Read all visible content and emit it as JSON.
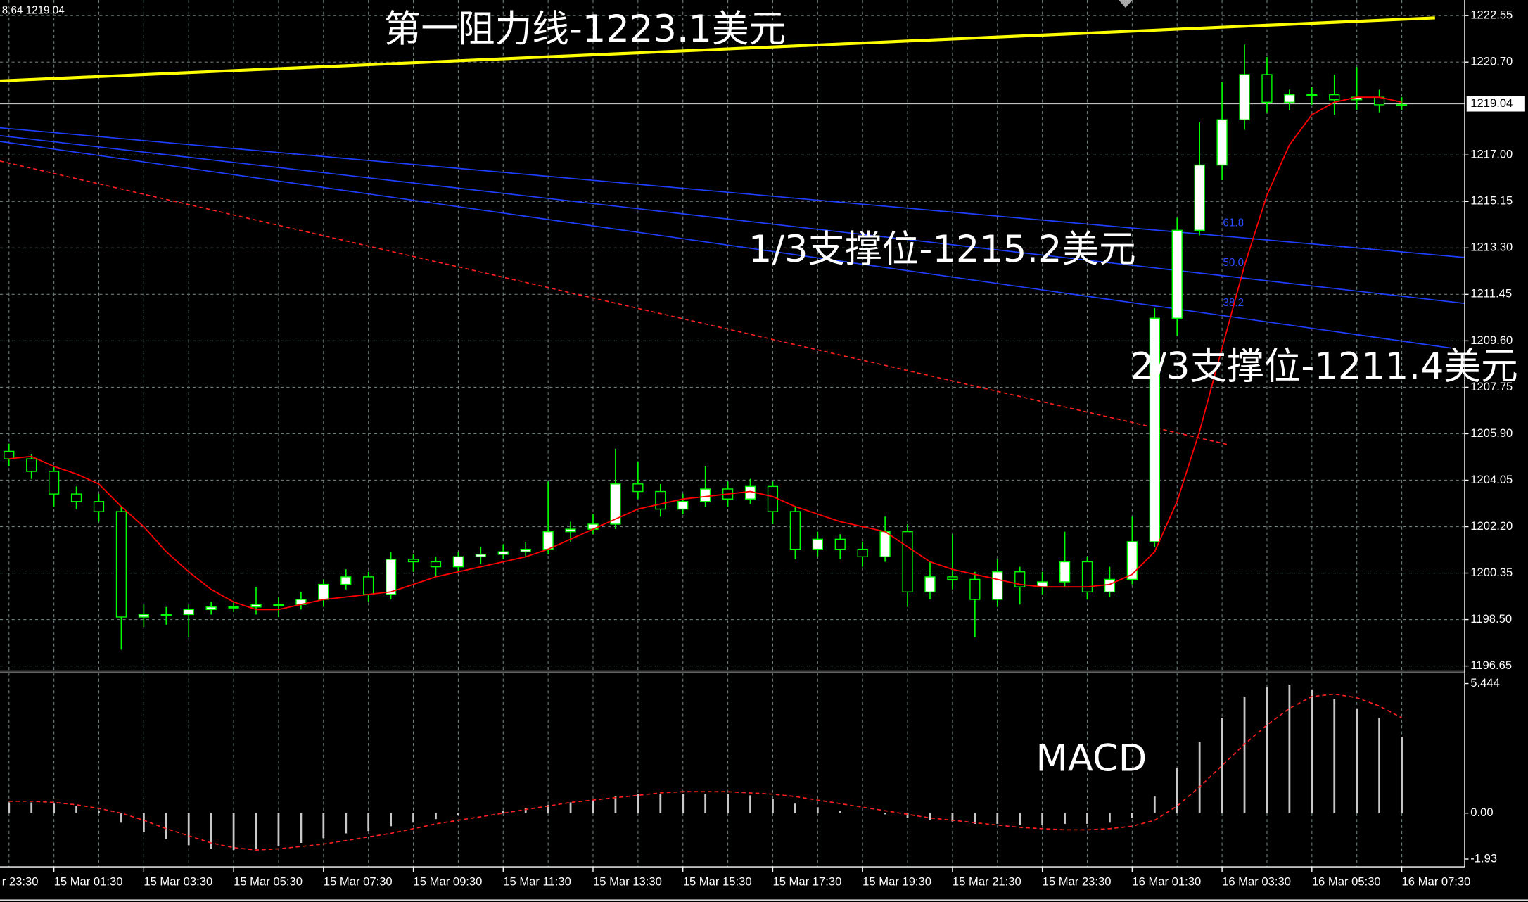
{
  "chart_data": {
    "type": "candlestick",
    "header": "8.64 1219.04",
    "annotations": [
      "第一阻力线-1223.1美元",
      "1/3支撑位-1215.2美元",
      "2/3支撑位-1211.4美元"
    ],
    "fib_levels": [
      "61.8",
      "50.0",
      "38.2"
    ],
    "x": [
      0.5,
      1,
      1.5,
      2,
      2.5,
      3,
      3.5,
      4,
      4.5,
      5,
      5.5,
      6,
      6.5,
      7,
      7.5,
      8,
      8.5,
      9,
      9.5,
      10,
      10.5,
      11,
      11.5,
      12,
      12.5,
      13,
      13.5,
      14,
      14.5,
      15,
      15.5,
      16,
      16.5,
      17,
      17.5,
      18,
      18.5,
      19,
      19.5,
      20,
      20.5,
      21,
      21.5,
      22,
      22.5,
      23,
      23.5,
      24,
      24.5,
      25,
      25.5,
      26,
      26.5,
      27,
      27.5,
      28,
      28.5,
      29,
      29.5,
      30,
      30.5,
      31,
      31.5
    ],
    "candles": [
      [
        1205.2,
        1205.5,
        1204.6,
        1204.9
      ],
      [
        1204.9,
        1205.1,
        1204.1,
        1204.4
      ],
      [
        1204.4,
        1204.6,
        1203.0,
        1203.5
      ],
      [
        1203.5,
        1203.8,
        1202.9,
        1203.2
      ],
      [
        1203.2,
        1203.5,
        1202.4,
        1202.8
      ],
      [
        1202.8,
        1203.0,
        1197.3,
        1198.6
      ],
      [
        1198.6,
        1199.1,
        1198.2,
        1198.7
      ],
      [
        1198.7,
        1199.0,
        1198.3,
        1198.7
      ],
      [
        1198.7,
        1199.1,
        1197.8,
        1198.9
      ],
      [
        1198.9,
        1199.2,
        1198.7,
        1199.0
      ],
      [
        1199.0,
        1199.2,
        1198.8,
        1199.0
      ],
      [
        1199.0,
        1199.8,
        1198.7,
        1199.1
      ],
      [
        1199.1,
        1199.4,
        1198.6,
        1199.1
      ],
      [
        1199.1,
        1199.6,
        1198.9,
        1199.3
      ],
      [
        1199.3,
        1200.1,
        1199.0,
        1199.9
      ],
      [
        1199.9,
        1200.5,
        1199.7,
        1200.2
      ],
      [
        1200.2,
        1200.4,
        1199.2,
        1199.5
      ],
      [
        1199.5,
        1201.2,
        1199.3,
        1200.9
      ],
      [
        1200.9,
        1201.1,
        1200.4,
        1200.8
      ],
      [
        1200.8,
        1201.0,
        1200.2,
        1200.6
      ],
      [
        1200.6,
        1201.2,
        1200.4,
        1201.0
      ],
      [
        1201.0,
        1201.4,
        1200.7,
        1201.1
      ],
      [
        1201.1,
        1201.5,
        1200.9,
        1201.2
      ],
      [
        1201.2,
        1201.6,
        1201.0,
        1201.3
      ],
      [
        1201.3,
        1204.0,
        1201.1,
        1202.0
      ],
      [
        1202.0,
        1202.4,
        1201.6,
        1202.1
      ],
      [
        1202.1,
        1202.7,
        1201.9,
        1202.3
      ],
      [
        1202.3,
        1205.3,
        1202.1,
        1203.9
      ],
      [
        1203.9,
        1204.8,
        1203.3,
        1203.6
      ],
      [
        1203.6,
        1203.9,
        1202.6,
        1202.9
      ],
      [
        1202.9,
        1203.5,
        1202.7,
        1203.2
      ],
      [
        1203.2,
        1204.6,
        1203.0,
        1203.7
      ],
      [
        1203.7,
        1204.0,
        1203.0,
        1203.3
      ],
      [
        1203.3,
        1204.1,
        1203.1,
        1203.8
      ],
      [
        1203.8,
        1204.0,
        1202.3,
        1202.8
      ],
      [
        1202.8,
        1203.0,
        1200.9,
        1201.3
      ],
      [
        1201.3,
        1202.0,
        1201.0,
        1201.7
      ],
      [
        1201.7,
        1201.9,
        1200.9,
        1201.3
      ],
      [
        1201.3,
        1201.6,
        1200.6,
        1201.0
      ],
      [
        1201.0,
        1202.6,
        1200.8,
        1202.0
      ],
      [
        1202.0,
        1202.3,
        1199.0,
        1199.6
      ],
      [
        1199.6,
        1200.8,
        1199.3,
        1200.2
      ],
      [
        1200.2,
        1201.9,
        1199.7,
        1200.1
      ],
      [
        1200.1,
        1200.4,
        1197.8,
        1199.3
      ],
      [
        1199.3,
        1200.9,
        1199.0,
        1200.4
      ],
      [
        1200.4,
        1200.6,
        1199.1,
        1199.8
      ],
      [
        1199.8,
        1200.4,
        1199.5,
        1200.0
      ],
      [
        1200.0,
        1202.0,
        1199.8,
        1200.8
      ],
      [
        1200.8,
        1201.0,
        1199.3,
        1199.6
      ],
      [
        1199.6,
        1200.6,
        1199.4,
        1200.1
      ],
      [
        1200.1,
        1202.6,
        1199.9,
        1201.6
      ],
      [
        1201.6,
        1210.9,
        1201.4,
        1210.5
      ],
      [
        1210.5,
        1214.5,
        1209.8,
        1214.0
      ],
      [
        1214.0,
        1218.3,
        1213.8,
        1216.6
      ],
      [
        1216.6,
        1219.9,
        1216.0,
        1218.4
      ],
      [
        1218.4,
        1221.4,
        1218.0,
        1220.2
      ],
      [
        1220.2,
        1220.9,
        1218.7,
        1219.1
      ],
      [
        1219.1,
        1219.6,
        1218.8,
        1219.4
      ],
      [
        1219.4,
        1219.7,
        1219.0,
        1219.4
      ],
      [
        1219.4,
        1220.2,
        1218.6,
        1219.2
      ],
      [
        1219.2,
        1220.5,
        1218.8,
        1219.3
      ],
      [
        1219.3,
        1219.6,
        1218.7,
        1219.0
      ],
      [
        1219.0,
        1219.3,
        1218.8,
        1219.0
      ]
    ],
    "up_color": "#ffffff",
    "down_color": "#000000",
    "wick_color": "#00ff00",
    "ma": {
      "color": "#ff0000",
      "values": [
        1204.9,
        1205.0,
        1204.6,
        1204.3,
        1203.9,
        1203.0,
        1202.2,
        1201.2,
        1200.4,
        1199.7,
        1199.2,
        1198.9,
        1198.9,
        1199.1,
        1199.3,
        1199.4,
        1199.5,
        1199.6,
        1199.9,
        1200.2,
        1200.4,
        1200.6,
        1200.8,
        1201.0,
        1201.3,
        1201.7,
        1202.1,
        1202.5,
        1202.9,
        1203.1,
        1203.3,
        1203.4,
        1203.5,
        1203.6,
        1203.4,
        1203.0,
        1202.7,
        1202.4,
        1202.2,
        1202.0,
        1201.4,
        1200.8,
        1200.5,
        1200.3,
        1200.1,
        1199.9,
        1199.8,
        1199.8,
        1199.8,
        1199.9,
        1200.3,
        1201.2,
        1203.2,
        1206.0,
        1209.3,
        1212.6,
        1215.4,
        1217.4,
        1218.6,
        1219.1,
        1219.3,
        1219.3,
        1219.1
      ]
    },
    "current_price": 1219.04,
    "lines": [
      {
        "color": "#ffff00",
        "dash": false,
        "x": [
          0.3,
          32.24
        ],
        "y": [
          1219.95,
          1222.46
        ]
      },
      {
        "color": "#1f3fff",
        "dash": false,
        "x": [
          0.3,
          32.9
        ],
        "y": [
          1218.08,
          1212.92
        ]
      },
      {
        "color": "#1f3fff",
        "dash": false,
        "x": [
          0.3,
          32.9
        ],
        "y": [
          1217.77,
          1211.09
        ]
      },
      {
        "color": "#1f3fff",
        "dash": false,
        "x": [
          0.3,
          32.6
        ],
        "y": [
          1217.54,
          1209.31
        ]
      },
      {
        "color": "#ff2020",
        "dash": true,
        "x": [
          0.3,
          27.65
        ],
        "y": [
          1216.76,
          1205.46
        ]
      }
    ],
    "xlim": [
      0.3,
      32.9
    ],
    "xticks": [
      {
        "value": -0.5,
        "label": "r 23:30"
      },
      {
        "value": 1.5,
        "label": "15 Mar 01:30"
      },
      {
        "value": 3.5,
        "label": "15 Mar 03:30"
      },
      {
        "value": 5.5,
        "label": "15 Mar 05:30"
      },
      {
        "value": 7.5,
        "label": "15 Mar 07:30"
      },
      {
        "value": 9.5,
        "label": "15 Mar 09:30"
      },
      {
        "value": 11.5,
        "label": "15 Mar 11:30"
      },
      {
        "value": 13.5,
        "label": "15 Mar 13:30"
      },
      {
        "value": 15.5,
        "label": "15 Mar 15:30"
      },
      {
        "value": 17.5,
        "label": "15 Mar 17:30"
      },
      {
        "value": 19.5,
        "label": "15 Mar 19:30"
      },
      {
        "value": 21.5,
        "label": "15 Mar 21:30"
      },
      {
        "value": 23.5,
        "label": "15 Mar 23:30"
      },
      {
        "value": 25.5,
        "label": "16 Mar 01:30"
      },
      {
        "value": 27.5,
        "label": "16 Mar 03:30"
      },
      {
        "value": 29.5,
        "label": "16 Mar 05:30"
      },
      {
        "value": 31.5,
        "label": "16 Mar 07:30"
      }
    ],
    "ylim": [
      1196.65,
      1222.55
    ],
    "yticks": [
      1222.55,
      {
        "value": 1220.7,
        "label": "1220.70"
      },
      {
        "value": 1217,
        "label": "1217.00"
      },
      1215.15,
      {
        "value": 1213.3,
        "label": "1213.30"
      },
      1211.45,
      {
        "value": 1209.6,
        "label": "1209.60"
      },
      1207.75,
      {
        "value": 1205.9,
        "label": "1205.90"
      },
      1204.05,
      {
        "value": 1202.2,
        "label": "1202.20"
      },
      1200.35,
      {
        "value": 1198.5,
        "label": "1198.50"
      },
      1196.65
    ],
    "grid": true,
    "macd": {
      "label": "MACD",
      "ylim": [
        -1.93,
        5.444
      ],
      "yticks": [
        5.444,
        {
          "value": 0,
          "label": "0.00"
        },
        -1.93
      ],
      "histogram": {
        "color": "#c8c8c8",
        "values": [
          0.45,
          0.45,
          0.4,
          0.3,
          0.1,
          -0.4,
          -0.8,
          -1.1,
          -1.35,
          -1.5,
          -1.55,
          -1.5,
          -1.4,
          -1.25,
          -1.05,
          -0.85,
          -0.75,
          -0.55,
          -0.4,
          -0.25,
          -0.1,
          0.0,
          0.1,
          0.2,
          0.35,
          0.45,
          0.55,
          0.7,
          0.8,
          0.8,
          0.8,
          0.8,
          0.8,
          0.75,
          0.6,
          0.4,
          0.25,
          0.1,
          0.0,
          -0.05,
          -0.2,
          -0.3,
          -0.35,
          -0.45,
          -0.45,
          -0.5,
          -0.5,
          -0.45,
          -0.45,
          -0.4,
          -0.2,
          0.7,
          1.9,
          3.0,
          4.0,
          4.9,
          5.3,
          5.4,
          5.2,
          4.8,
          4.4,
          4.0,
          3.2
        ]
      },
      "signal": {
        "color": "#ff2020",
        "values": [
          0.5,
          0.5,
          0.45,
          0.35,
          0.2,
          0.0,
          -0.3,
          -0.65,
          -0.95,
          -1.25,
          -1.45,
          -1.55,
          -1.5,
          -1.4,
          -1.3,
          -1.15,
          -1.0,
          -0.85,
          -0.65,
          -0.45,
          -0.3,
          -0.15,
          0.0,
          0.15,
          0.3,
          0.45,
          0.55,
          0.65,
          0.75,
          0.85,
          0.9,
          0.9,
          0.9,
          0.85,
          0.8,
          0.7,
          0.55,
          0.4,
          0.25,
          0.1,
          -0.05,
          -0.2,
          -0.3,
          -0.4,
          -0.5,
          -0.6,
          -0.65,
          -0.7,
          -0.7,
          -0.65,
          -0.55,
          -0.3,
          0.3,
          1.1,
          2.0,
          2.9,
          3.7,
          4.4,
          4.9,
          5.0,
          4.85,
          4.5,
          4.0
        ]
      }
    }
  }
}
